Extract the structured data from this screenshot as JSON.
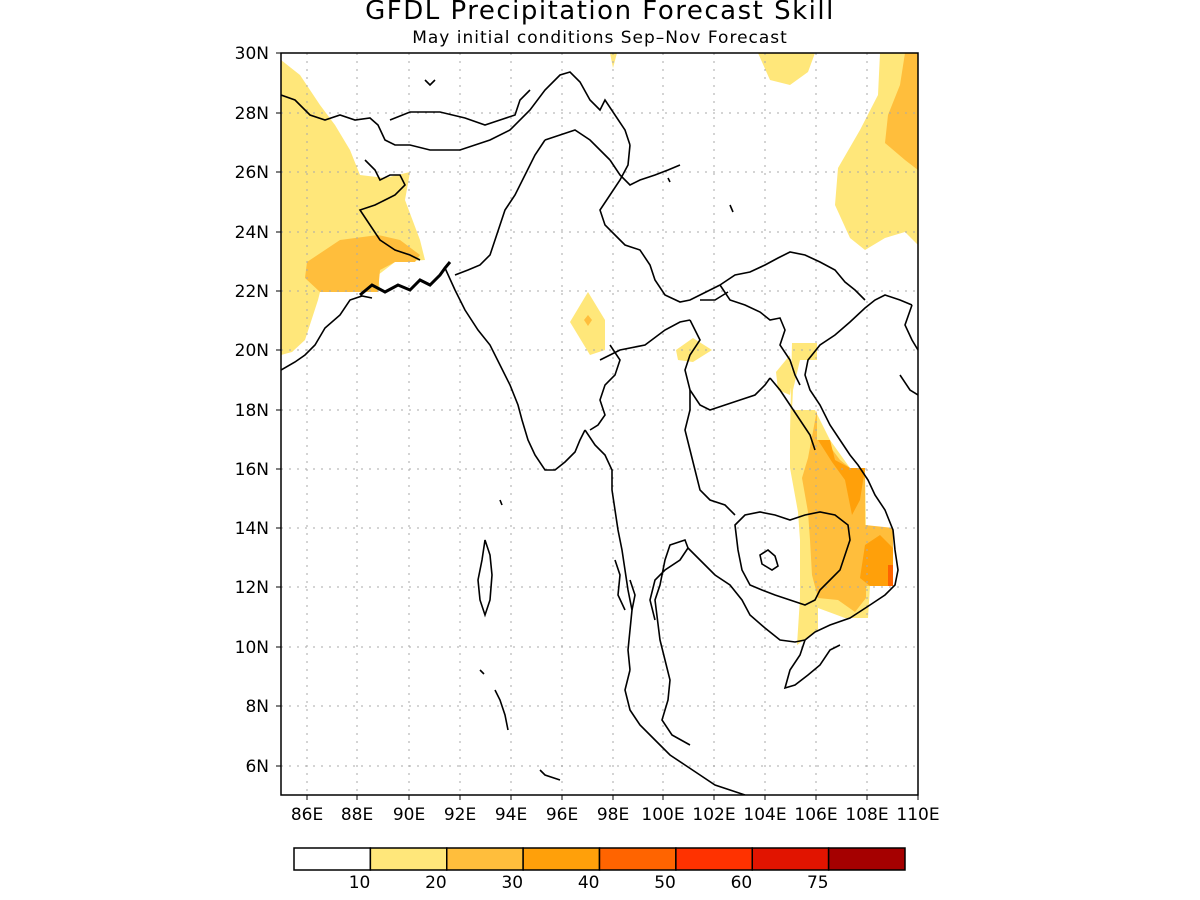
{
  "title": "GFDL Precipitation Forecast Skill",
  "subtitle": "May initial conditions  Sep–Nov Forecast",
  "lon_ticks": [
    "86E",
    "88E",
    "90E",
    "92E",
    "94E",
    "96E",
    "98E",
    "100E",
    "102E",
    "104E",
    "106E",
    "108E",
    "110E"
  ],
  "lat_ticks": [
    "30N",
    "28N",
    "26N",
    "24N",
    "22N",
    "20N",
    "18N",
    "16N",
    "14N",
    "12N",
    "10N",
    "8N",
    "6N"
  ],
  "colorbar": {
    "colors": [
      "#ffffff",
      "#ffe77a",
      "#ffbe3c",
      "#ffa00a",
      "#ff6400",
      "#ff3200",
      "#e11400",
      "#a50000"
    ],
    "labels": [
      "10",
      "20",
      "30",
      "40",
      "50",
      "60",
      "75"
    ]
  }
}
